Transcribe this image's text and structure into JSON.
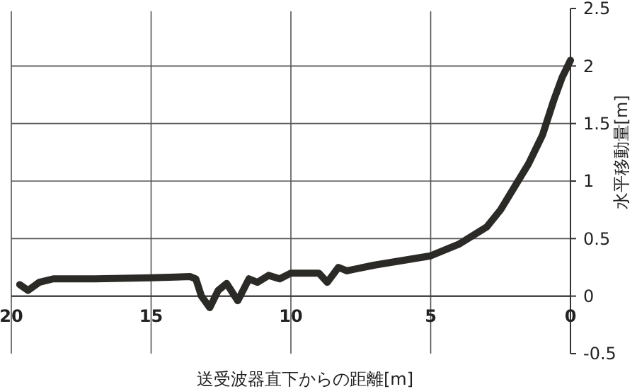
{
  "chart_data": {
    "type": "line",
    "xlabel": "送受波器直下からの距離[m]",
    "ylabel": "水平移動量[m]",
    "x": [
      19.7,
      19.4,
      19.0,
      18.5,
      17,
      15,
      13.6,
      13.4,
      13.2,
      12.9,
      12.6,
      12.3,
      11.9,
      11.5,
      11.2,
      10.8,
      10.4,
      10,
      9,
      8.7,
      8.3,
      8,
      7,
      6,
      5,
      4,
      3,
      2.5,
      2,
      1.5,
      1,
      0.6,
      0.3,
      0
    ],
    "series": [
      {
        "color": "#2b2a26",
        "values": [
          0.1,
          0.05,
          0.12,
          0.15,
          0.15,
          0.16,
          0.17,
          0.15,
          0.0,
          -0.1,
          0.05,
          0.11,
          -0.04,
          0.15,
          0.12,
          0.18,
          0.15,
          0.2,
          0.2,
          0.12,
          0.25,
          0.22,
          0.27,
          0.31,
          0.35,
          0.45,
          0.6,
          0.75,
          0.95,
          1.15,
          1.4,
          1.7,
          1.9,
          2.05
        ]
      }
    ],
    "xlim": [
      20,
      0
    ],
    "xticks": [
      20,
      15,
      10,
      5,
      0
    ],
    "ylim": [
      -0.5,
      2.5
    ],
    "yticks": [
      -0.5,
      0,
      0.5,
      1,
      1.5,
      2,
      2.5
    ],
    "grid": true,
    "marker": "none",
    "line_style": "solid"
  }
}
